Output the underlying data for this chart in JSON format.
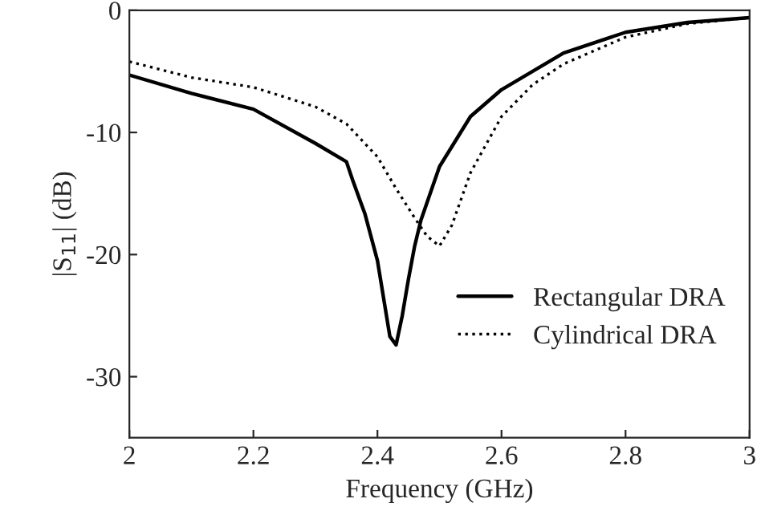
{
  "chart_data": {
    "type": "line",
    "xlabel": "Frequency (GHz)",
    "ylabel": "|S$_{11}$| (dB)",
    "xlim": [
      2,
      3
    ],
    "ylim": [
      -35,
      0
    ],
    "xticks": [
      2,
      2.2,
      2.4,
      2.6,
      2.8,
      3
    ],
    "yticks": [
      0,
      -10,
      -20,
      -30
    ],
    "grid": false,
    "legend": "right",
    "series": [
      {
        "name": "Rectangular DRA",
        "color": "#000000",
        "line_style": "solid",
        "x": [
          2.0,
          2.1,
          2.2,
          2.3,
          2.35,
          2.36,
          2.38,
          2.4,
          2.42,
          2.43,
          2.44,
          2.45,
          2.46,
          2.47,
          2.5,
          2.55,
          2.6,
          2.7,
          2.8,
          2.9,
          3.0
        ],
        "values": [
          -5.3,
          -6.8,
          -8.1,
          -10.9,
          -12.4,
          -13.9,
          -16.7,
          -20.5,
          -26.7,
          -27.4,
          -25,
          -22,
          -19.3,
          -17.2,
          -12.8,
          -8.7,
          -6.5,
          -3.5,
          -1.8,
          -1.0,
          -0.6
        ]
      },
      {
        "name": "Cylindrical DRA",
        "color": "#000000",
        "line_style": "dotted",
        "x": [
          2.0,
          2.1,
          2.2,
          2.3,
          2.35,
          2.4,
          2.43,
          2.46,
          2.48,
          2.5,
          2.52,
          2.55,
          2.6,
          2.65,
          2.7,
          2.8,
          2.9,
          3.0
        ],
        "values": [
          -4.2,
          -5.5,
          -6.3,
          -7.9,
          -9.3,
          -12,
          -14.6,
          -17,
          -18.5,
          -19.3,
          -17.6,
          -13.3,
          -8.7,
          -6.1,
          -4.4,
          -2.2,
          -1.1,
          -0.6
        ]
      }
    ]
  }
}
